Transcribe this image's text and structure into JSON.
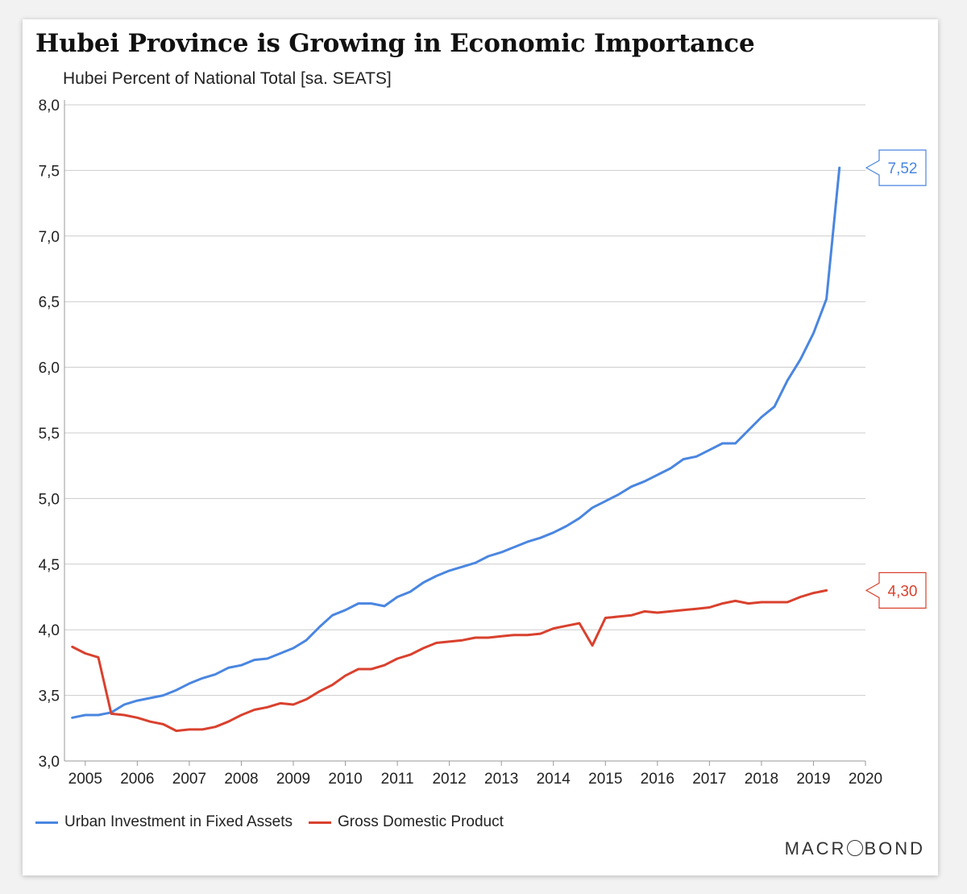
{
  "title": "Hubei Province is Growing in Economic Importance",
  "subtitle": "Hubei Percent of National Total [sa. SEATS]",
  "brand": {
    "left": "MACR",
    "right": "BOND"
  },
  "colors": {
    "investment": "#4a86e0",
    "gdp": "#d9412e",
    "grid": "#cccccc",
    "axis": "#999999"
  },
  "chart_data": {
    "type": "line",
    "title": "Hubei Province is Growing in Economic Importance",
    "ylabel": "Hubei Percent of National Total [sa. SEATS]",
    "xlim": [
      2004.6,
      2020
    ],
    "ylim": [
      3.0,
      8.0
    ],
    "xticks": [
      2005,
      2006,
      2007,
      2008,
      2009,
      2010,
      2011,
      2012,
      2013,
      2014,
      2015,
      2016,
      2017,
      2018,
      2019,
      2020
    ],
    "yticks": [
      3.0,
      3.5,
      4.0,
      4.5,
      5.0,
      5.5,
      6.0,
      6.5,
      7.0,
      7.5,
      8.0
    ],
    "ytick_labels": [
      "3,0",
      "3,5",
      "4,0",
      "4,5",
      "5,0",
      "5,5",
      "6,0",
      "6,5",
      "7,0",
      "7,5",
      "8,0"
    ],
    "legend_position": "bottom-left",
    "series": [
      {
        "name": "Urban Investment in Fixed Assets",
        "color": "#4a86e0",
        "end_label": "7,52",
        "x": [
          2004.75,
          2005.0,
          2005.25,
          2005.5,
          2005.75,
          2006.0,
          2006.25,
          2006.5,
          2006.75,
          2007.0,
          2007.25,
          2007.5,
          2007.75,
          2008.0,
          2008.25,
          2008.5,
          2008.75,
          2009.0,
          2009.25,
          2009.5,
          2009.75,
          2010.0,
          2010.25,
          2010.5,
          2010.75,
          2011.0,
          2011.25,
          2011.5,
          2011.75,
          2012.0,
          2012.25,
          2012.5,
          2012.75,
          2013.0,
          2013.25,
          2013.5,
          2013.75,
          2014.0,
          2014.25,
          2014.5,
          2014.75,
          2015.0,
          2015.25,
          2015.5,
          2015.75,
          2016.0,
          2016.25,
          2016.5,
          2016.75,
          2017.0,
          2017.25,
          2017.5,
          2017.75,
          2018.0,
          2018.25,
          2018.5,
          2018.75,
          2019.0,
          2019.25,
          2019.5
        ],
        "values": [
          3.33,
          3.35,
          3.35,
          3.37,
          3.43,
          3.46,
          3.48,
          3.5,
          3.54,
          3.59,
          3.63,
          3.66,
          3.71,
          3.73,
          3.77,
          3.78,
          3.82,
          3.86,
          3.92,
          4.02,
          4.11,
          4.15,
          4.2,
          4.2,
          4.18,
          4.25,
          4.29,
          4.36,
          4.41,
          4.45,
          4.48,
          4.51,
          4.56,
          4.59,
          4.63,
          4.67,
          4.7,
          4.74,
          4.79,
          4.85,
          4.93,
          4.98,
          5.03,
          5.09,
          5.13,
          5.18,
          5.23,
          5.3,
          5.32,
          5.37,
          5.42,
          5.42,
          5.52,
          5.62,
          5.7,
          5.9,
          6.06,
          6.26,
          6.52,
          7.52
        ]
      },
      {
        "name": "Gross Domestic Product",
        "color": "#d9412e",
        "end_label": "4,30",
        "x": [
          2004.75,
          2005.0,
          2005.25,
          2005.5,
          2005.75,
          2006.0,
          2006.25,
          2006.5,
          2006.75,
          2007.0,
          2007.25,
          2007.5,
          2007.75,
          2008.0,
          2008.25,
          2008.5,
          2008.75,
          2009.0,
          2009.25,
          2009.5,
          2009.75,
          2010.0,
          2010.25,
          2010.5,
          2010.75,
          2011.0,
          2011.25,
          2011.5,
          2011.75,
          2012.0,
          2012.25,
          2012.5,
          2012.75,
          2013.0,
          2013.25,
          2013.5,
          2013.75,
          2014.0,
          2014.25,
          2014.5,
          2014.75,
          2015.0,
          2015.25,
          2015.5,
          2015.75,
          2016.0,
          2016.25,
          2016.5,
          2016.75,
          2017.0,
          2017.25,
          2017.5,
          2017.75,
          2018.0,
          2018.25,
          2018.5,
          2018.75,
          2019.0,
          2019.25
        ],
        "values": [
          3.87,
          3.82,
          3.79,
          3.36,
          3.35,
          3.33,
          3.3,
          3.28,
          3.23,
          3.24,
          3.24,
          3.26,
          3.3,
          3.35,
          3.39,
          3.41,
          3.44,
          3.43,
          3.47,
          3.53,
          3.58,
          3.65,
          3.7,
          3.7,
          3.73,
          3.78,
          3.81,
          3.86,
          3.9,
          3.91,
          3.92,
          3.94,
          3.94,
          3.95,
          3.96,
          3.96,
          3.97,
          4.01,
          4.03,
          4.05,
          3.88,
          4.09,
          4.1,
          4.11,
          4.14,
          4.13,
          4.14,
          4.15,
          4.16,
          4.17,
          4.2,
          4.22,
          4.2,
          4.21,
          4.21,
          4.21,
          4.25,
          4.28,
          4.3
        ]
      }
    ]
  }
}
